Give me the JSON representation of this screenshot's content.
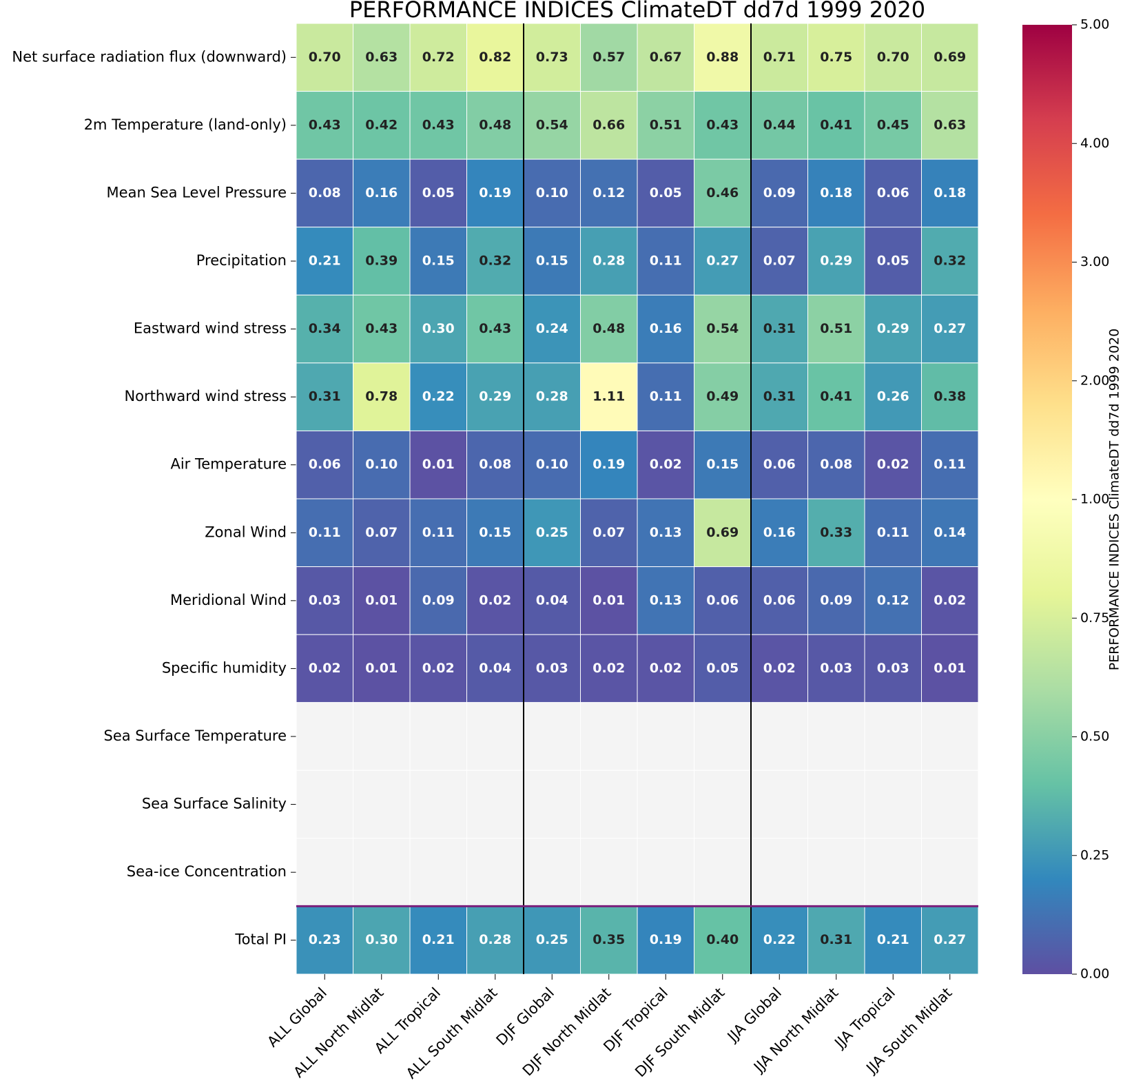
{
  "chart_data": {
    "type": "heatmap",
    "title": "PERFORMANCE INDICES ClimateDT dd7d 1999 2020",
    "rows": [
      "Net surface radiation flux (downward)",
      "2m Temperature (land-only)",
      "Mean Sea Level Pressure",
      "Precipitation",
      "Eastward wind stress",
      "Northward wind stress",
      "Air Temperature",
      "Zonal Wind",
      "Meridional Wind",
      "Specific humidity",
      "Sea Surface Temperature",
      "Sea Surface Salinity",
      "Sea-ice Concentration",
      "Total PI"
    ],
    "columns": [
      "ALL Global",
      "ALL North Midlat",
      "ALL Tropical",
      "ALL South Midlat",
      "DJF Global",
      "DJF North Midlat",
      "DJF Tropical",
      "DJF South Midlat",
      "JJA Global",
      "JJA North Midlat",
      "JJA Tropical",
      "JJA South Midlat"
    ],
    "values": [
      [
        0.7,
        0.63,
        0.72,
        0.82,
        0.73,
        0.57,
        0.67,
        0.88,
        0.71,
        0.75,
        0.7,
        0.69
      ],
      [
        0.43,
        0.42,
        0.43,
        0.48,
        0.54,
        0.66,
        0.51,
        0.43,
        0.44,
        0.41,
        0.45,
        0.63
      ],
      [
        0.08,
        0.16,
        0.05,
        0.19,
        0.1,
        0.12,
        0.05,
        0.46,
        0.09,
        0.18,
        0.06,
        0.18
      ],
      [
        0.21,
        0.39,
        0.15,
        0.32,
        0.15,
        0.28,
        0.11,
        0.27,
        0.07,
        0.29,
        0.05,
        0.32
      ],
      [
        0.34,
        0.43,
        0.3,
        0.43,
        0.24,
        0.48,
        0.16,
        0.54,
        0.31,
        0.51,
        0.29,
        0.27
      ],
      [
        0.31,
        0.78,
        0.22,
        0.29,
        0.28,
        1.11,
        0.11,
        0.49,
        0.31,
        0.41,
        0.26,
        0.38
      ],
      [
        0.06,
        0.1,
        0.01,
        0.08,
        0.1,
        0.19,
        0.02,
        0.15,
        0.06,
        0.08,
        0.02,
        0.11
      ],
      [
        0.11,
        0.07,
        0.11,
        0.15,
        0.25,
        0.07,
        0.13,
        0.69,
        0.16,
        0.33,
        0.11,
        0.14
      ],
      [
        0.03,
        0.01,
        0.09,
        0.02,
        0.04,
        0.01,
        0.13,
        0.06,
        0.06,
        0.09,
        0.12,
        0.02
      ],
      [
        0.02,
        0.01,
        0.02,
        0.04,
        0.03,
        0.02,
        0.02,
        0.05,
        0.02,
        0.03,
        0.03,
        0.01
      ],
      [
        null,
        null,
        null,
        null,
        null,
        null,
        null,
        null,
        null,
        null,
        null,
        null
      ],
      [
        null,
        null,
        null,
        null,
        null,
        null,
        null,
        null,
        null,
        null,
        null,
        null
      ],
      [
        null,
        null,
        null,
        null,
        null,
        null,
        null,
        null,
        null,
        null,
        null,
        null
      ],
      [
        0.23,
        0.3,
        0.21,
        0.28,
        0.25,
        0.35,
        0.19,
        0.4,
        0.22,
        0.31,
        0.21,
        0.27
      ]
    ],
    "value_labels": [
      [
        "0.70",
        "0.63",
        "0.72",
        "0.82",
        "0.73",
        "0.57",
        "0.67",
        "0.88",
        "0.71",
        "0.75",
        "0.70",
        "0.69"
      ],
      [
        "0.43",
        "0.42",
        "0.43",
        "0.48",
        "0.54",
        "0.66",
        "0.51",
        "0.43",
        "0.44",
        "0.41",
        "0.45",
        "0.63"
      ],
      [
        "0.08",
        "0.16",
        "0.05",
        "0.19",
        "0.10",
        "0.12",
        "0.05",
        "0.46",
        "0.09",
        "0.18",
        "0.06",
        "0.18"
      ],
      [
        "0.21",
        "0.39",
        "0.15",
        "0.32",
        "0.15",
        "0.28",
        "0.11",
        "0.27",
        "0.07",
        "0.29",
        "0.05",
        "0.32"
      ],
      [
        "0.34",
        "0.43",
        "0.30",
        "0.43",
        "0.24",
        "0.48",
        "0.16",
        "0.54",
        "0.31",
        "0.51",
        "0.29",
        "0.27"
      ],
      [
        "0.31",
        "0.78",
        "0.22",
        "0.29",
        "0.28",
        "1.11",
        "0.11",
        "0.49",
        "0.31",
        "0.41",
        "0.26",
        "0.38"
      ],
      [
        "0.06",
        "0.10",
        "0.01",
        "0.08",
        "0.10",
        "0.19",
        "0.02",
        "0.15",
        "0.06",
        "0.08",
        "0.02",
        "0.11"
      ],
      [
        "0.11",
        "0.07",
        "0.11",
        "0.15",
        "0.25",
        "0.07",
        "0.13",
        "0.69",
        "0.16",
        "0.33",
        "0.11",
        "0.14"
      ],
      [
        "0.03",
        "0.01",
        "0.09",
        "0.02",
        "0.04",
        "0.01",
        "0.13",
        "0.06",
        "0.06",
        "0.09",
        "0.12",
        "0.02"
      ],
      [
        "0.02",
        "0.01",
        "0.02",
        "0.04",
        "0.03",
        "0.02",
        "0.02",
        "0.05",
        "0.02",
        "0.03",
        "0.03",
        "0.01"
      ],
      [
        null,
        null,
        null,
        null,
        null,
        null,
        null,
        null,
        null,
        null,
        null,
        null
      ],
      [
        null,
        null,
        null,
        null,
        null,
        null,
        null,
        null,
        null,
        null,
        null,
        null
      ],
      [
        null,
        null,
        null,
        null,
        null,
        null,
        null,
        null,
        null,
        null,
        null,
        null
      ],
      [
        "0.23",
        "0.30",
        "0.21",
        "0.28",
        "0.25",
        "0.35",
        "0.19",
        "0.40",
        "0.22",
        "0.31",
        "0.21",
        "0.27"
      ]
    ],
    "colorbar_label": "PERFORMANCE INDICES ClimateDT dd7d 1999 2020",
    "clim": [
      0,
      5
    ],
    "colorbar_ticks": [
      {
        "value": 0,
        "label": "0.00"
      },
      {
        "value": 0.25,
        "label": "0.25"
      },
      {
        "value": 0.5,
        "label": "0.50"
      },
      {
        "value": 0.75,
        "label": "0.75"
      },
      {
        "value": 1,
        "label": "1.00"
      },
      {
        "value": 2,
        "label": "2.00"
      },
      {
        "value": 3,
        "label": "3.00"
      },
      {
        "value": 4,
        "label": "4.00"
      },
      {
        "value": 5,
        "label": "5.00"
      }
    ],
    "colormap": "Spectral_r"
  }
}
